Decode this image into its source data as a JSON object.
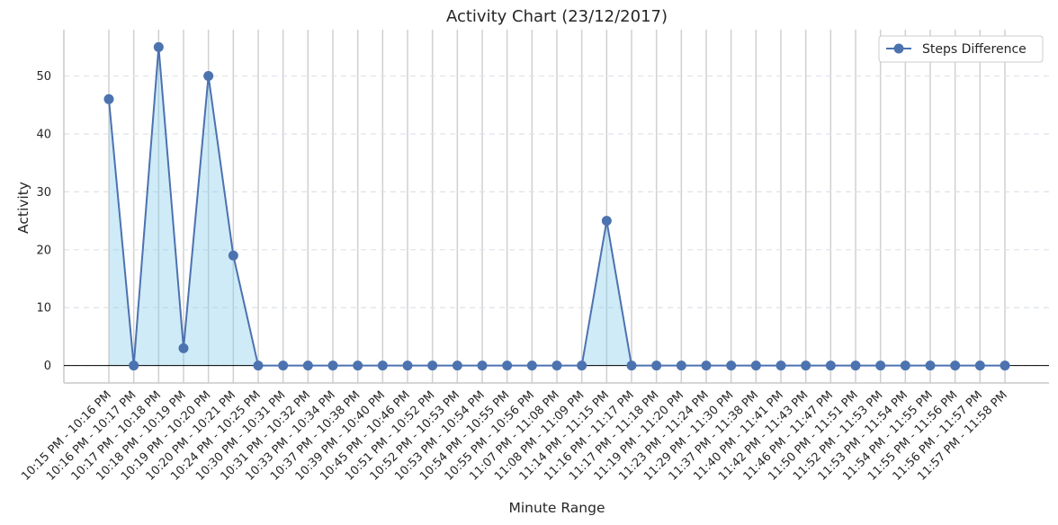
{
  "chart_data": {
    "type": "line",
    "title": "Activity Chart (23/12/2017)",
    "xlabel": "Minute Range",
    "ylabel": "Activity",
    "ylim": [
      -3,
      58
    ],
    "yticks": [
      0,
      10,
      20,
      30,
      40,
      50
    ],
    "grid": {
      "x": true,
      "y": "dashed"
    },
    "legend_position": "top-right",
    "fill": "area-to-zero",
    "colors": {
      "line": "#4c72b0",
      "fill": "#87ceeb",
      "zero_line": "#000000",
      "grid": "#d0d0d0"
    },
    "categories": [
      "10:15 PM - 10:16 PM",
      "10:16 PM - 10:17 PM",
      "10:17 PM - 10:18 PM",
      "10:18 PM - 10:19 PM",
      "10:19 PM - 10:20 PM",
      "10:20 PM - 10:21 PM",
      "10:24 PM - 10:25 PM",
      "10:30 PM - 10:31 PM",
      "10:31 PM - 10:32 PM",
      "10:33 PM - 10:34 PM",
      "10:37 PM - 10:38 PM",
      "10:39 PM - 10:40 PM",
      "10:45 PM - 10:46 PM",
      "10:51 PM - 10:52 PM",
      "10:52 PM - 10:53 PM",
      "10:53 PM - 10:54 PM",
      "10:54 PM - 10:55 PM",
      "10:55 PM - 10:56 PM",
      "11:07 PM - 11:08 PM",
      "11:08 PM - 11:09 PM",
      "11:14 PM - 11:15 PM",
      "11:16 PM - 11:17 PM",
      "11:17 PM - 11:18 PM",
      "11:19 PM - 11:20 PM",
      "11:23 PM - 11:24 PM",
      "11:29 PM - 11:30 PM",
      "11:37 PM - 11:38 PM",
      "11:40 PM - 11:41 PM",
      "11:42 PM - 11:43 PM",
      "11:46 PM - 11:47 PM",
      "11:50 PM - 11:51 PM",
      "11:52 PM - 11:53 PM",
      "11:53 PM - 11:54 PM",
      "11:54 PM - 11:55 PM",
      "11:55 PM - 11:56 PM",
      "11:56 PM - 11:57 PM",
      "11:57 PM - 11:58 PM"
    ],
    "series": [
      {
        "name": "Steps Difference",
        "values": [
          46,
          0,
          55,
          3,
          50,
          19,
          0,
          0,
          0,
          0,
          0,
          0,
          0,
          0,
          0,
          0,
          0,
          0,
          0,
          0,
          25,
          0,
          0,
          0,
          0,
          0,
          0,
          0,
          0,
          0,
          0,
          0,
          0,
          0,
          0,
          0,
          0
        ]
      }
    ]
  }
}
